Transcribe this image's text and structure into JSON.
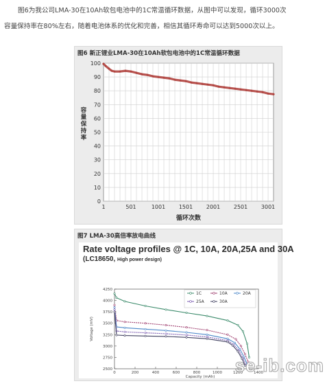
{
  "intro": {
    "line1": "图6为我公司LMA-30在10Ah软包电池中的1C常温循环数据，从图中可以发现，循环3000次",
    "line2": "容量保持率在80%左右，随着电池体系的优化和完善，相信其循环寿命可以达到5000次以上。"
  },
  "figure1": {
    "caption": "图6    新正锂业LMA-30在10Ah软包电池中的1C常温循环数据",
    "chart_data": {
      "type": "line",
      "title": "",
      "xlabel": "循环次数",
      "ylabel": "容量保持率",
      "xlim": [
        1,
        3100
      ],
      "ylim": [
        0,
        100
      ],
      "xticks": [
        "1",
        "501",
        "1001",
        "1501",
        "2001",
        "2501",
        "3001"
      ],
      "yticks": [
        "0",
        "10",
        "20",
        "30",
        "40",
        "50",
        "60",
        "70",
        "80",
        "90",
        "100"
      ],
      "grid": true,
      "color": "#b0423e",
      "series": [
        {
          "x": [
            1,
            40,
            100,
            150,
            200,
            300,
            400,
            500,
            600,
            700,
            800,
            900,
            1000,
            1100,
            1200,
            1300,
            1400,
            1500,
            1600,
            1700,
            1800,
            1900,
            2000,
            2100,
            2200,
            2300,
            2400,
            2500,
            2600,
            2700,
            2800,
            2900,
            3000,
            3100
          ],
          "y": [
            99.5,
            98,
            96,
            94.5,
            94,
            94,
            94.5,
            94,
            93,
            92,
            91.5,
            90.5,
            90,
            89.5,
            89,
            88,
            87.5,
            87,
            86,
            85.5,
            85,
            84.5,
            84,
            83,
            82.5,
            82,
            81.5,
            81,
            80.5,
            80,
            79.5,
            79,
            78,
            77.5
          ]
        }
      ]
    }
  },
  "figure2": {
    "caption": "图7    LMA-30高倍率放电曲线",
    "title": "Rate voltage profiles @ 1C, 10A, 20A,25A and 30A",
    "subtitle": "(LC18650,",
    "subtitle_small": "High power design)",
    "chart_data": {
      "type": "line",
      "title": "Rate voltage profiles @ 1C, 10A, 20A,25A and 30A",
      "xlabel": "Capacity (mAh)",
      "ylabel": "Voltage (mV)",
      "xlim": [
        0,
        1400
      ],
      "ylim": [
        2500,
        4250
      ],
      "xticks": [
        "0",
        "200",
        "400",
        "600",
        "800",
        "1000",
        "1200",
        "1400"
      ],
      "yticks": [
        "2500",
        "2750",
        "3000",
        "3250",
        "3500",
        "3750",
        "4000",
        "4250"
      ],
      "legend_position": "top-right",
      "series": [
        {
          "name": "1C",
          "color": "#3a8a6a",
          "x": [
            0,
            20,
            100,
            300,
            500,
            700,
            900,
            1100,
            1200,
            1250,
            1290,
            1310
          ],
          "y": [
            4150,
            4060,
            3980,
            3880,
            3800,
            3730,
            3660,
            3560,
            3460,
            3320,
            3050,
            2750
          ]
        },
        {
          "name": "10A",
          "color": "#a04070",
          "x": [
            0,
            20,
            100,
            300,
            500,
            700,
            900,
            1100,
            1180,
            1230,
            1270,
            1300
          ],
          "y": [
            3900,
            3560,
            3530,
            3500,
            3460,
            3410,
            3350,
            3250,
            3150,
            3000,
            2820,
            2650
          ]
        },
        {
          "name": "20A",
          "color": "#4a86c8",
          "x": [
            0,
            20,
            100,
            300,
            500,
            700,
            900,
            1100,
            1170,
            1220,
            1260,
            1290
          ],
          "y": [
            3850,
            3420,
            3400,
            3370,
            3340,
            3300,
            3250,
            3160,
            3070,
            2930,
            2760,
            2600
          ]
        },
        {
          "name": "25A",
          "color": "#7a5ab0",
          "x": [
            0,
            20,
            100,
            300,
            500,
            700,
            900,
            1100,
            1160,
            1210,
            1250,
            1280
          ],
          "y": [
            3800,
            3330,
            3310,
            3290,
            3270,
            3240,
            3200,
            3120,
            3030,
            2900,
            2730,
            2580
          ]
        },
        {
          "name": "30A",
          "color": "#404060",
          "x": [
            0,
            20,
            100,
            300,
            500,
            700,
            900,
            1100,
            1150,
            1200,
            1240,
            1270
          ],
          "y": [
            3750,
            3240,
            3230,
            3220,
            3210,
            3190,
            3160,
            3090,
            3010,
            2880,
            2720,
            2570
          ]
        }
      ]
    }
  },
  "watermark": "se-ib.com"
}
